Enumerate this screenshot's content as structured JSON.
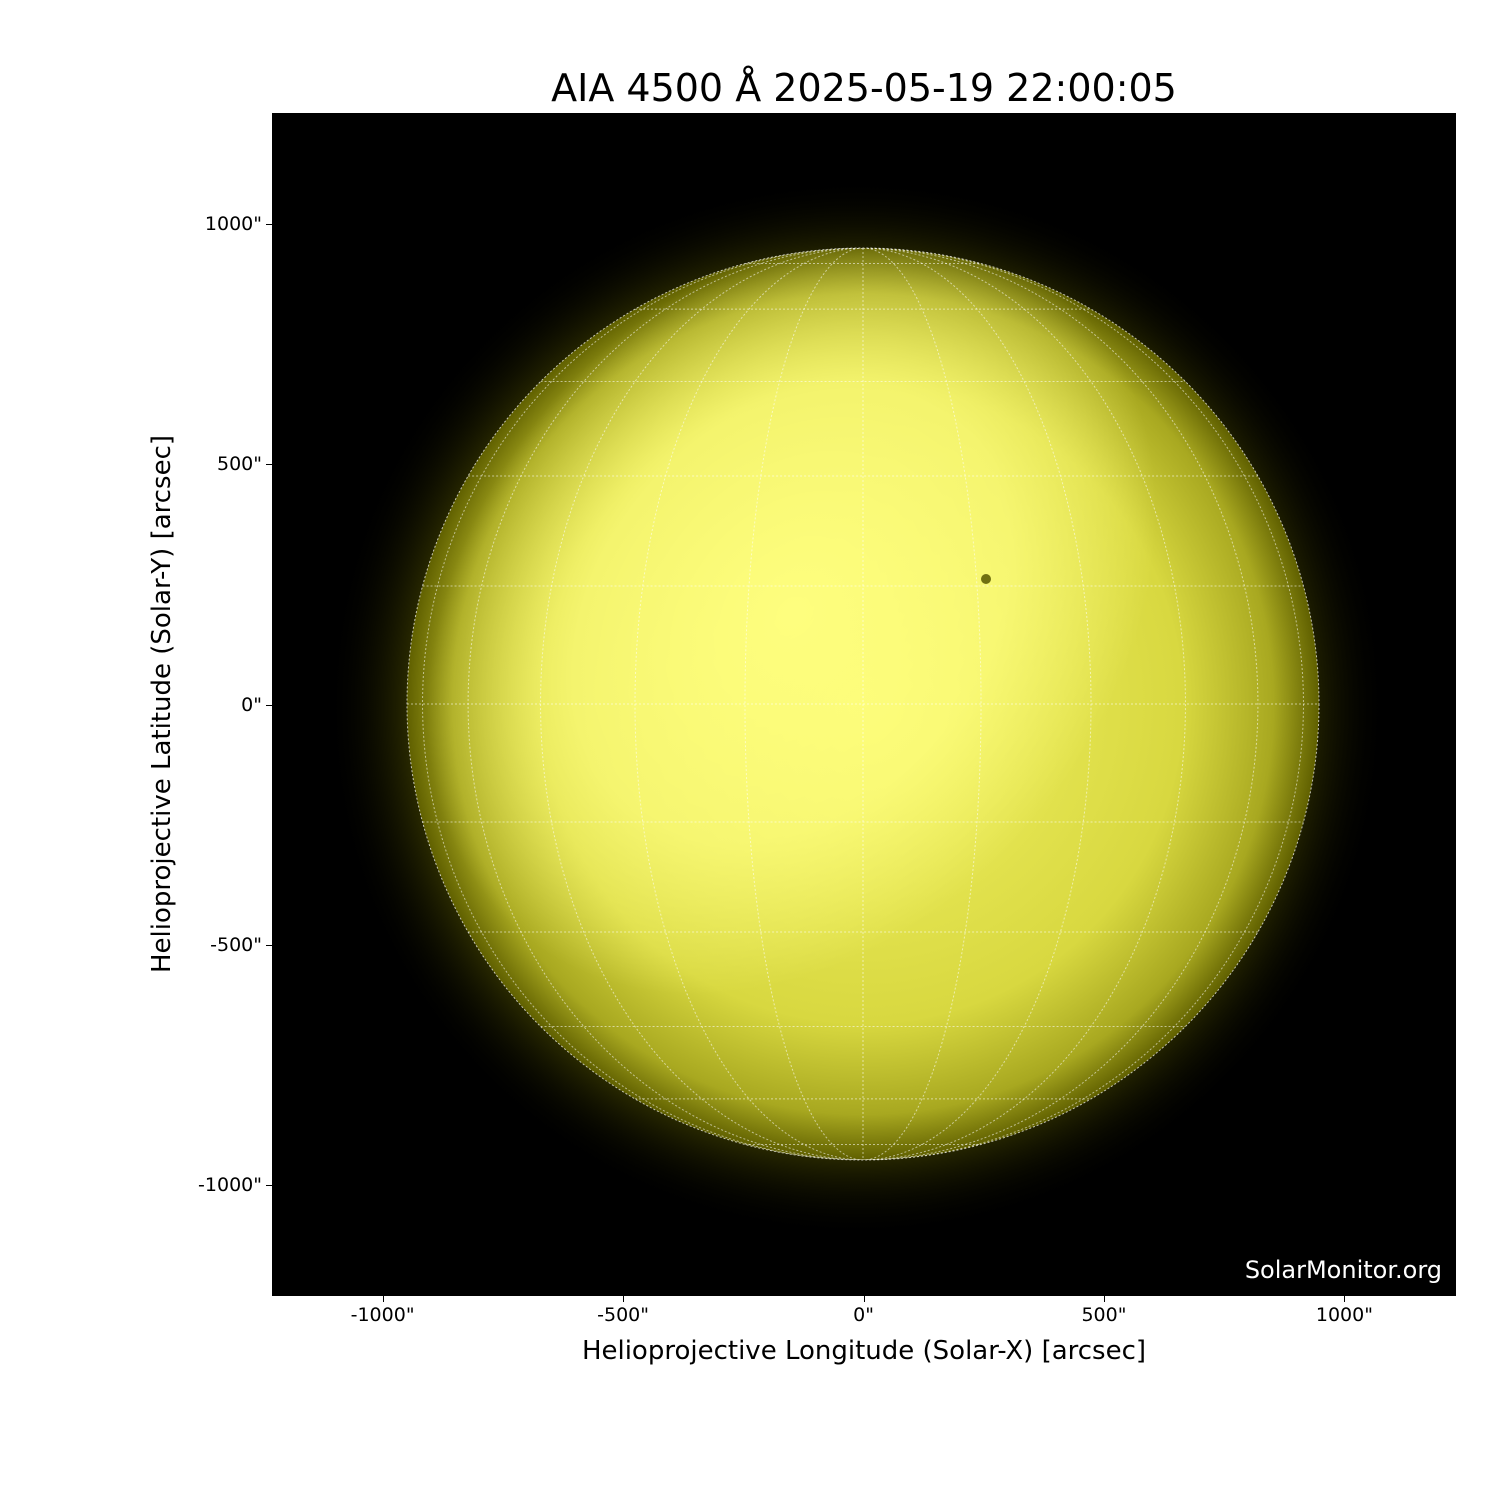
{
  "chart_data": {
    "type": "image",
    "title": "AIA 4500 Å 2025-05-19 22:00:05",
    "xlabel": "Helioprojective Longitude (Solar-X) [arcsec]",
    "ylabel": "Helioprojective Latitude (Solar-Y) [arcsec]",
    "xlim": [
      -1230,
      1232
    ],
    "ylim": [
      -1230,
      1230
    ],
    "xticks": [
      -1000,
      -500,
      0,
      500,
      1000
    ],
    "xtick_labels": [
      "-1000\"",
      "-500\"",
      "0\"",
      "500\"",
      "1000\""
    ],
    "yticks": [
      1000,
      500,
      0,
      -500,
      -1000
    ],
    "ytick_labels": [
      "1000\"",
      "500\"",
      "0\"",
      "-500\"",
      "-1000\""
    ],
    "solar_radius_arcsec": 948,
    "grid": "heliographic lon/lat every 15°, white dotted",
    "colormap": "yellow (black to #ffff80)",
    "background": "#000000"
  },
  "watermark": "SolarMonitor.org"
}
